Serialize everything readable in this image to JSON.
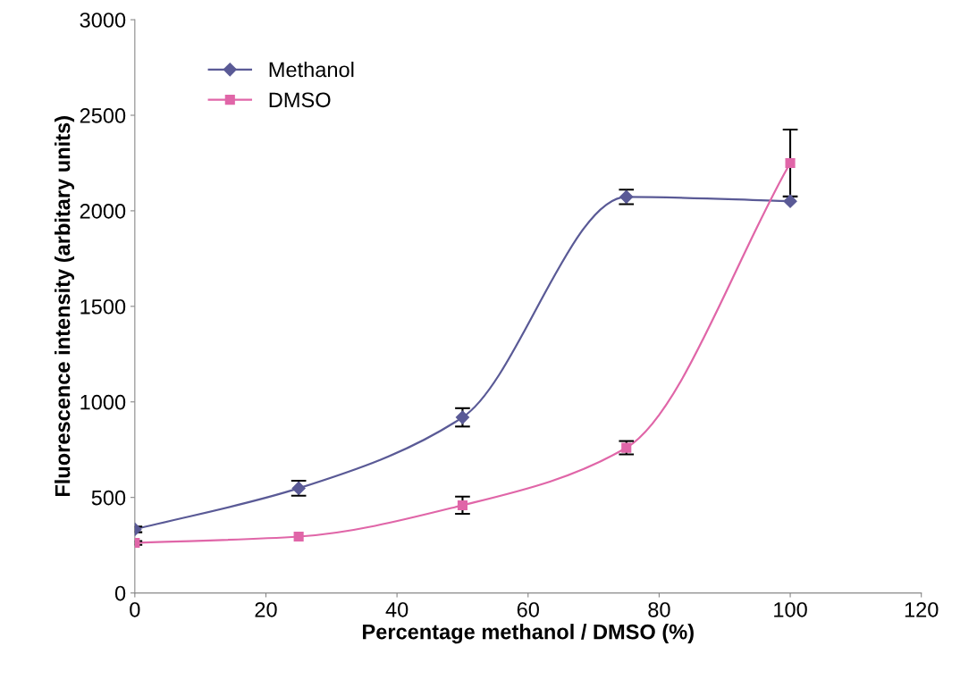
{
  "chart_data": {
    "type": "line",
    "xlabel": "Percentage methanol / DMSO (%)",
    "ylabel": "Fluorescence intensity (arbitary units)",
    "x": [
      0,
      25,
      50,
      75,
      100
    ],
    "series": [
      {
        "name": "Methanol",
        "color": "#5a5a96",
        "marker": "diamond",
        "values": [
          333,
          548,
          919,
          2073,
          2050
        ],
        "errors": [
          15,
          39,
          48,
          38,
          null
        ]
      },
      {
        "name": "DMSO",
        "color": "#e066a8",
        "marker": "square",
        "values": [
          262,
          295,
          459,
          760,
          2250
        ],
        "errors": [
          10,
          null,
          45,
          35,
          175
        ]
      }
    ],
    "xlim": [
      0,
      120
    ],
    "xticks": [
      0,
      20,
      40,
      60,
      80,
      100,
      120
    ],
    "ylim": [
      0,
      3000
    ],
    "yticks": [
      0,
      500,
      1000,
      1500,
      2000,
      2500,
      3000
    ],
    "grid": false,
    "legend": "top left",
    "line_style": "solid"
  }
}
